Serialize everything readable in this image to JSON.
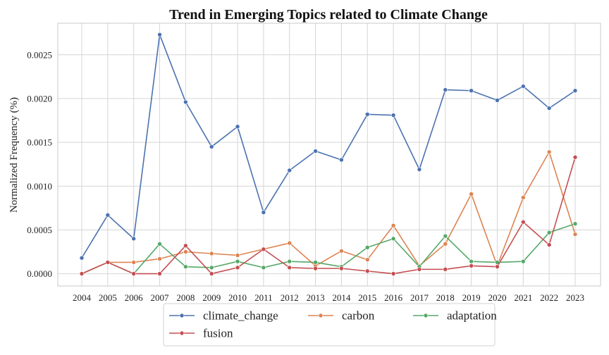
{
  "chart_data": {
    "type": "line",
    "title": "Trend in Emerging Topics related to Climate Change",
    "xlabel": "",
    "ylabel": "Normalized Frequency (%)",
    "x": [
      "2004",
      "2005",
      "2006",
      "2007",
      "2008",
      "2009",
      "2010",
      "2011",
      "2012",
      "2013",
      "2014",
      "2015",
      "2016",
      "2017",
      "2018",
      "2019",
      "2020",
      "2021",
      "2022",
      "2023"
    ],
    "yticks": [
      "0.0000",
      "0.0005",
      "0.0010",
      "0.0015",
      "0.0020",
      "0.0025"
    ],
    "ylim": [
      -0.00014,
      0.00286
    ],
    "grid": true,
    "legend_position": "bottom-center",
    "series": [
      {
        "name": "climate_change",
        "color": "#4c72b0",
        "values": [
          0.00018,
          0.00067,
          0.0004,
          0.00273,
          0.00196,
          0.00145,
          0.00168,
          0.0007,
          0.00118,
          0.0014,
          0.0013,
          0.00182,
          0.00181,
          0.00119,
          0.0021,
          0.00209,
          0.00198,
          0.00214,
          0.00189,
          0.00209
        ]
      },
      {
        "name": "carbon",
        "color": "#dd8452",
        "values": [
          0.0,
          0.00013,
          0.00013,
          0.00017,
          0.00025,
          0.00023,
          0.00021,
          0.00028,
          0.00035,
          9e-05,
          0.00026,
          0.00016,
          0.00055,
          9e-05,
          0.00034,
          0.00091,
          9e-05,
          0.00087,
          0.00139,
          0.00045
        ]
      },
      {
        "name": "adaptation",
        "color": "#55a868",
        "values": [
          0.0,
          0.00013,
          0.0,
          0.00034,
          8e-05,
          7e-05,
          0.00014,
          7e-05,
          0.00014,
          0.00013,
          8e-05,
          0.0003,
          0.0004,
          8e-05,
          0.00043,
          0.00014,
          0.00013,
          0.00014,
          0.00047,
          0.00057
        ]
      },
      {
        "name": "fusion",
        "color": "#c44e52",
        "values": [
          0.0,
          0.00013,
          0.0,
          0.0,
          0.00032,
          0.0,
          7e-05,
          0.00028,
          7e-05,
          6e-05,
          6e-05,
          3e-05,
          0.0,
          5e-05,
          5e-05,
          9e-05,
          8e-05,
          0.00059,
          0.00033,
          0.00133
        ]
      }
    ],
    "legend_order": [
      "climate_change",
      "carbon",
      "adaptation",
      "fusion"
    ]
  }
}
